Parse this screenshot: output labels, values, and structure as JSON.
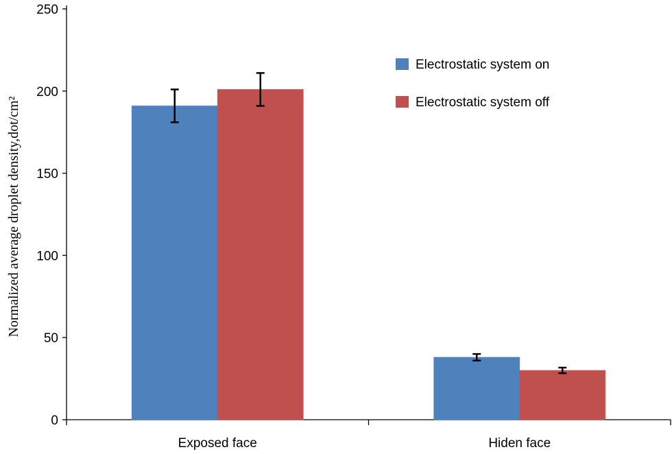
{
  "chart_data": {
    "type": "bar",
    "title": "",
    "xlabel": "",
    "ylabel": "Normalized average droplet density,dot/cm²",
    "ylim": [
      0,
      250
    ],
    "yticks": [
      0,
      50,
      100,
      150,
      200,
      250
    ],
    "categories": [
      "Exposed face",
      "Hiden face"
    ],
    "series": [
      {
        "name": "Electrostatic system on",
        "color": "#4F81BD",
        "values": [
          191,
          38
        ],
        "errors": [
          10,
          2
        ]
      },
      {
        "name": "Electrostatic system off",
        "color": "#C0504D",
        "values": [
          201,
          30
        ],
        "errors": [
          10,
          1.7
        ]
      }
    ],
    "legend_position": "top-right",
    "grid": false
  }
}
